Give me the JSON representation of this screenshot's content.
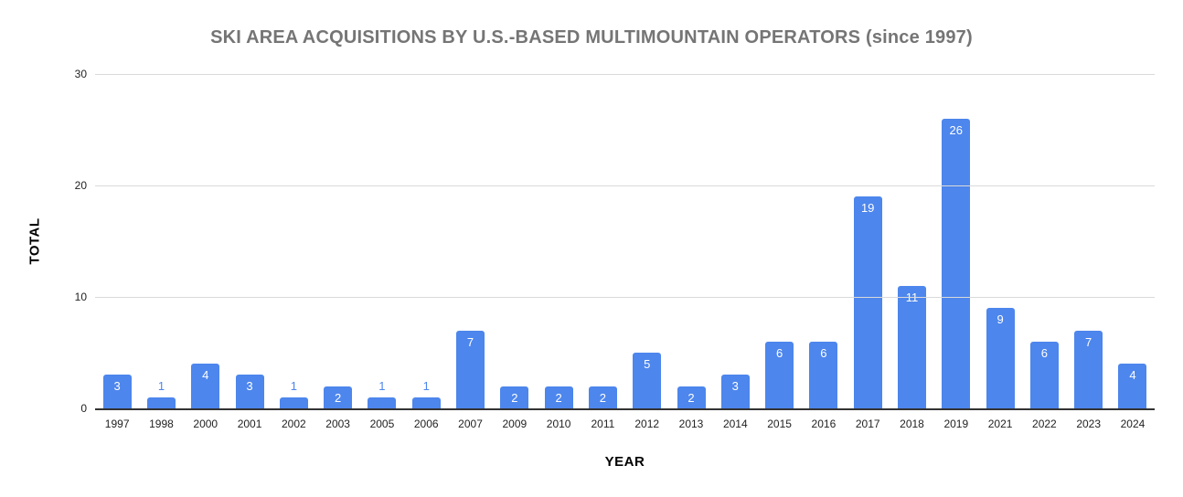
{
  "chart_data": {
    "type": "bar",
    "title": "SKI AREA ACQUISITIONS BY U.S.-BASED MULTIMOUNTAIN OPERATORS (since 1997)",
    "xlabel": "YEAR",
    "ylabel": "TOTAL",
    "categories": [
      "1997",
      "1998",
      "2000",
      "2001",
      "2002",
      "2003",
      "2005",
      "2006",
      "2007",
      "2009",
      "2010",
      "2011",
      "2012",
      "2013",
      "2014",
      "2015",
      "2016",
      "2017",
      "2018",
      "2019",
      "2021",
      "2022",
      "2023",
      "2024"
    ],
    "values": [
      3,
      1,
      4,
      3,
      1,
      2,
      1,
      1,
      7,
      2,
      2,
      2,
      5,
      2,
      3,
      6,
      6,
      19,
      11,
      26,
      9,
      6,
      7,
      4
    ],
    "ylim": [
      0,
      30
    ],
    "yticks": [
      0,
      10,
      20,
      30
    ],
    "grid": true,
    "legend": "none",
    "colors": {
      "bar": "#4d86ec",
      "label_inside": "#ffffff",
      "label_above": "#4d86ec",
      "title": "#757575",
      "axis_line": "#333333",
      "gridline": "#dadada",
      "tick_label": "#222222"
    }
  }
}
